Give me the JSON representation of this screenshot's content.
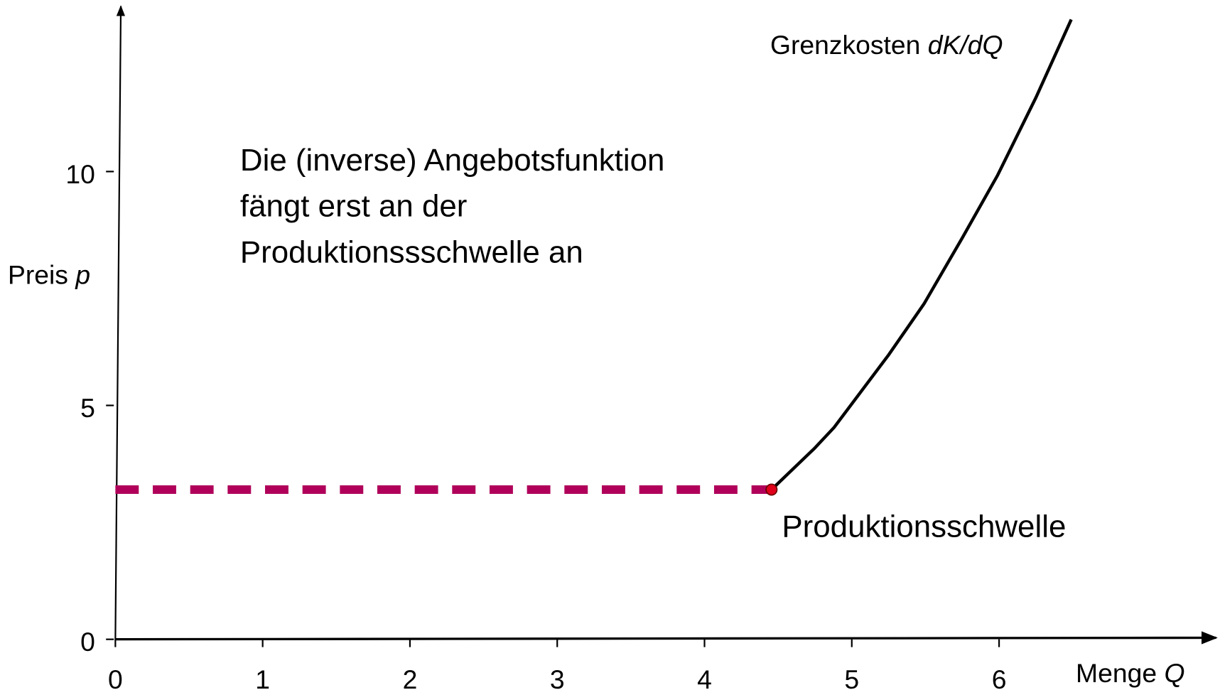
{
  "chart_data": {
    "type": "line",
    "xlim": [
      0,
      7.5
    ],
    "ylim": [
      0,
      13.5
    ],
    "xticks": [
      0,
      1,
      2,
      3,
      4,
      5,
      6
    ],
    "yticks": [
      0,
      5,
      10
    ],
    "x_label": {
      "text": "Menge",
      "symbol": "Q"
    },
    "y_label": {
      "text": "Preis",
      "symbol": "p"
    },
    "series": [
      {
        "color": "#000000",
        "dashed": false,
        "x": [
          4.455,
          4.746,
          4.88,
          5.25,
          5.49,
          5.75,
          5.99,
          6.25,
          6.49
        ],
        "values": [
          3.2,
          4.08,
          4.53,
          6.08,
          7.17,
          8.58,
          9.92,
          11.58,
          13.25
        ]
      },
      {
        "color": "#b0005a",
        "dashed": true,
        "x": [
          0,
          4.455
        ],
        "values": [
          3.2,
          3.2
        ]
      }
    ],
    "point": {
      "x": 4.455,
      "y": 3.2,
      "color": "#e0001b"
    },
    "curve_label": {
      "text": "Grenzkosten",
      "symbol": "dK/dQ"
    },
    "point_label": "Produktionsschwelle",
    "note": [
      "Die (inverse) Angebotsfunktion",
      "fängt erst an der",
      "Produktionssschwelle an"
    ]
  }
}
